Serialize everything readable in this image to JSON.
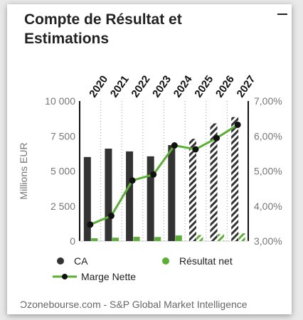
{
  "widget": {
    "title": "Compte de Résultat et Estimations",
    "source": "Ɔzonebourse.com - S&P Global Market Intelligence"
  },
  "chart_data": {
    "type": "bar",
    "categories": [
      "2020",
      "2021",
      "2022",
      "2023",
      "2024",
      "2025",
      "2026",
      "2027"
    ],
    "estimate_from_index": 5,
    "y_left": {
      "label": "Millions EUR",
      "min": 0,
      "max": 10000,
      "ticks": [
        "0",
        "2 500",
        "5 000",
        "7 500",
        "10 000"
      ],
      "tick_values": [
        0,
        2500,
        5000,
        7500,
        10000
      ]
    },
    "y_right": {
      "min": 3.0,
      "max": 7.0,
      "ticks": [
        "3,00%",
        "4,00%",
        "5,00%",
        "6,00%",
        "7,00%"
      ],
      "tick_values": [
        3,
        4,
        5,
        6,
        7
      ]
    },
    "series": [
      {
        "name": "CA",
        "axis": "left",
        "kind": "bar",
        "color": "#333333",
        "values": [
          6000,
          6600,
          6400,
          6050,
          6850,
          7300,
          8400,
          8850
        ]
      },
      {
        "name": "Résultat net",
        "axis": "left",
        "kind": "bar",
        "color": "#5ab034",
        "values": [
          200,
          240,
          300,
          290,
          400,
          430,
          500,
          560
        ]
      },
      {
        "name": "Marge Nette",
        "axis": "right",
        "kind": "line",
        "color": "#5ab034",
        "values": [
          3.47,
          3.72,
          4.73,
          4.9,
          5.73,
          5.62,
          5.94,
          6.32
        ]
      }
    ],
    "grid": "vertical-dotted",
    "legend_position": "bottom"
  }
}
